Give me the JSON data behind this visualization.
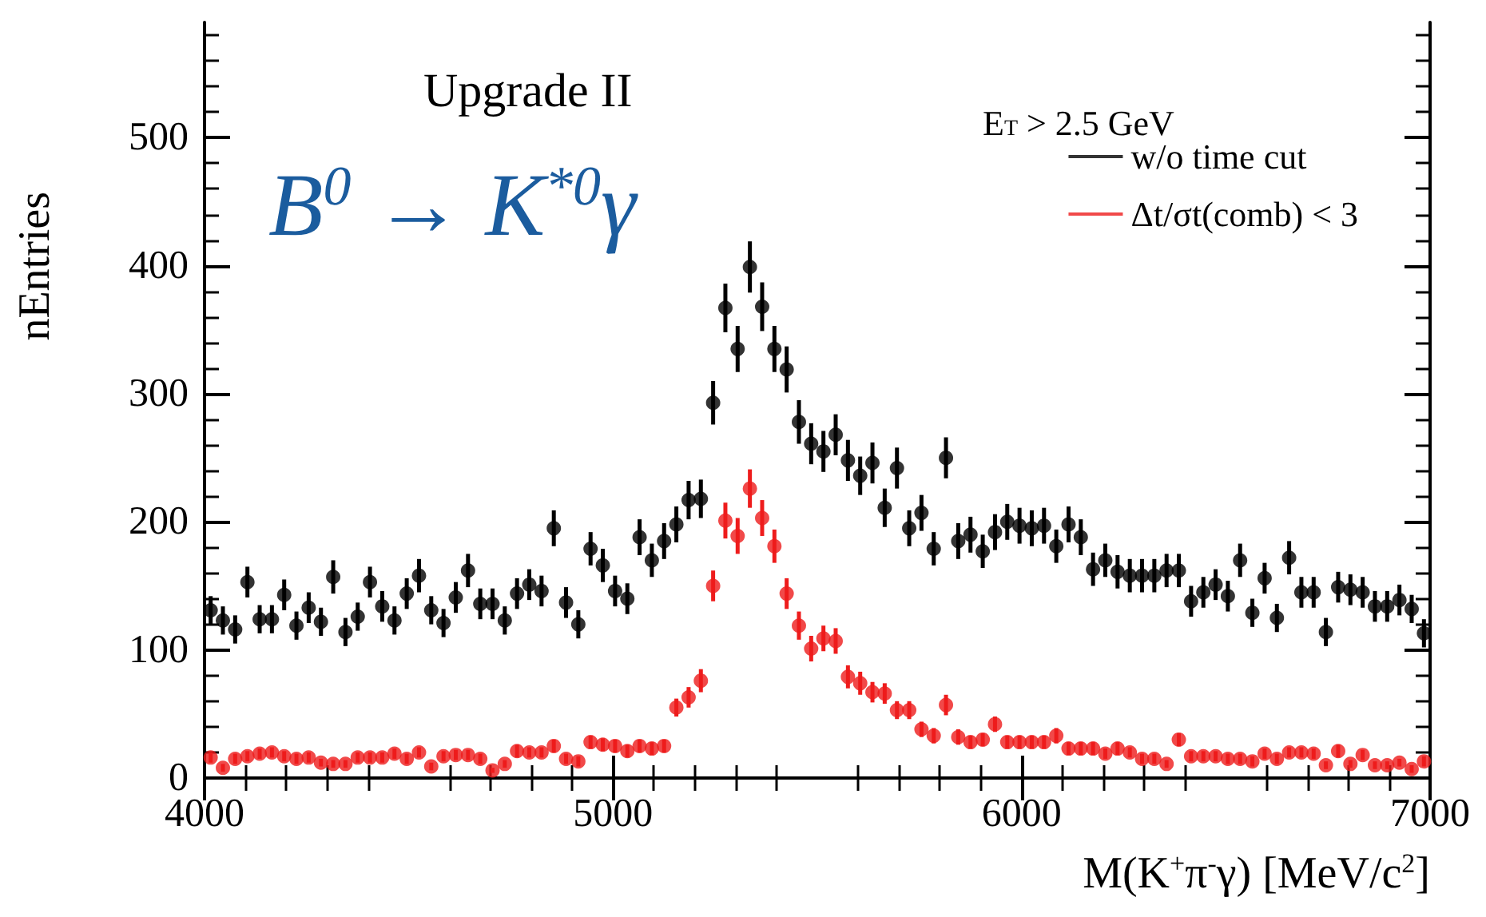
{
  "chart_data": {
    "type": "scatter",
    "xlabel": "M(K$^{+}$π$^{-}$γ) [MeV/c$^{2}$]",
    "ylabel": "nEntries",
    "legend_title": "E$_{T}$ > 2.5 GeV",
    "annotations": [
      "Upgrade II",
      "B$^{0}$ → K$^{*0}$γ"
    ],
    "xlim": [
      4000,
      7000
    ],
    "xticks": [
      4000,
      5000,
      6000,
      7000
    ],
    "ylim": [
      0,
      590
    ],
    "yticks": [
      0,
      100,
      200,
      300,
      400,
      500
    ],
    "legend": "top right",
    "marker": "circle",
    "x": [
      4015,
      4045,
      4075,
      4105,
      4135,
      4165,
      4195,
      4225,
      4255,
      4285,
      4315,
      4345,
      4375,
      4405,
      4435,
      4465,
      4495,
      4525,
      4555,
      4585,
      4615,
      4645,
      4675,
      4705,
      4735,
      4765,
      4795,
      4825,
      4855,
      4885,
      4915,
      4945,
      4975,
      5005,
      5035,
      5065,
      5095,
      5125,
      5155,
      5185,
      5215,
      5245,
      5275,
      5305,
      5335,
      5365,
      5395,
      5425,
      5455,
      5485,
      5515,
      5545,
      5575,
      5605,
      5635,
      5665,
      5695,
      5725,
      5755,
      5785,
      5815,
      5845,
      5875,
      5905,
      5935,
      5965,
      5995,
      6025,
      6055,
      6085,
      6115,
      6145,
      6175,
      6205,
      6235,
      6265,
      6295,
      6325,
      6355,
      6385,
      6415,
      6445,
      6475,
      6505,
      6535,
      6565,
      6595,
      6625,
      6655,
      6685,
      6715,
      6745,
      6775,
      6805,
      6835,
      6865,
      6895,
      6925,
      6955,
      6985
    ],
    "series": [
      {
        "name": "w/o time cut",
        "color": "#000000",
        "values": [
          131,
          123,
          116,
          153,
          124,
          124,
          143,
          119,
          133,
          122,
          157,
          114,
          126,
          153,
          134,
          123,
          144,
          158,
          131,
          121,
          141,
          162,
          136,
          136,
          123,
          144,
          151,
          146,
          195,
          137,
          120,
          179,
          166,
          146,
          140,
          188,
          170,
          185,
          198,
          217,
          218,
          293,
          367,
          335,
          399,
          368,
          335,
          319,
          278,
          261,
          255,
          268,
          248,
          236,
          246,
          211,
          242,
          195,
          207,
          179,
          250,
          185,
          190,
          177,
          192,
          200,
          197,
          195,
          197,
          181,
          198,
          188,
          163,
          170,
          161,
          158,
          158,
          158,
          162,
          162,
          138,
          145,
          151,
          142,
          170,
          129,
          156,
          125,
          172,
          145,
          145,
          114,
          149,
          147,
          145,
          134,
          134,
          139,
          132,
          113
        ],
        "errors": [
          11,
          11,
          11,
          12,
          11,
          11,
          12,
          11,
          12,
          11,
          13,
          11,
          11,
          12,
          12,
          11,
          12,
          13,
          11,
          11,
          12,
          13,
          12,
          12,
          11,
          12,
          12,
          12,
          14,
          12,
          11,
          13,
          13,
          12,
          12,
          14,
          13,
          14,
          14,
          15,
          15,
          17,
          19,
          18,
          20,
          19,
          18,
          18,
          17,
          16,
          16,
          16,
          16,
          15,
          16,
          15,
          16,
          14,
          14,
          13,
          16,
          14,
          14,
          13,
          14,
          14,
          14,
          14,
          14,
          13,
          14,
          14,
          13,
          13,
          13,
          13,
          13,
          13,
          13,
          13,
          12,
          12,
          12,
          12,
          13,
          11,
          12,
          11,
          13,
          12,
          12,
          11,
          12,
          12,
          12,
          12,
          12,
          12,
          11,
          11
        ]
      },
      {
        "name": "Δt/σt(comb) < 3",
        "color": "#ee1c1c",
        "values": [
          16,
          8,
          15,
          17,
          19,
          20,
          17,
          15,
          16,
          12,
          11,
          11,
          16,
          16,
          16,
          19,
          15,
          20,
          9,
          17,
          18,
          18,
          15,
          6,
          11,
          21,
          20,
          20,
          25,
          15,
          13,
          28,
          26,
          25,
          21,
          25,
          23,
          25,
          55,
          63,
          76,
          150,
          201,
          189,
          226,
          203,
          181,
          144,
          119,
          101,
          109,
          107,
          79,
          74,
          67,
          66,
          53,
          53,
          38,
          33,
          57,
          32,
          28,
          30,
          42,
          28,
          28,
          28,
          28,
          33,
          23,
          23,
          23,
          19,
          23,
          20,
          15,
          15,
          11,
          30,
          17,
          17,
          17,
          15,
          15,
          13,
          19,
          15,
          20,
          20,
          19,
          10,
          21,
          11,
          18,
          10,
          10,
          12,
          7,
          13
        ],
        "errors": [
          4,
          3,
          4,
          4,
          4,
          4,
          4,
          4,
          4,
          3,
          3,
          3,
          4,
          4,
          4,
          4,
          4,
          4,
          3,
          4,
          4,
          4,
          4,
          2,
          3,
          5,
          4,
          4,
          5,
          4,
          4,
          5,
          5,
          5,
          5,
          5,
          5,
          5,
          7,
          8,
          9,
          12,
          14,
          14,
          15,
          14,
          13,
          12,
          11,
          10,
          10,
          10,
          9,
          9,
          8,
          8,
          7,
          7,
          6,
          6,
          8,
          6,
          5,
          5,
          6,
          5,
          5,
          5,
          5,
          6,
          5,
          5,
          5,
          4,
          5,
          4,
          4,
          4,
          3,
          5,
          4,
          4,
          4,
          4,
          4,
          4,
          4,
          4,
          4,
          4,
          4,
          3,
          5,
          3,
          4,
          3,
          3,
          3,
          3,
          4
        ]
      }
    ]
  }
}
